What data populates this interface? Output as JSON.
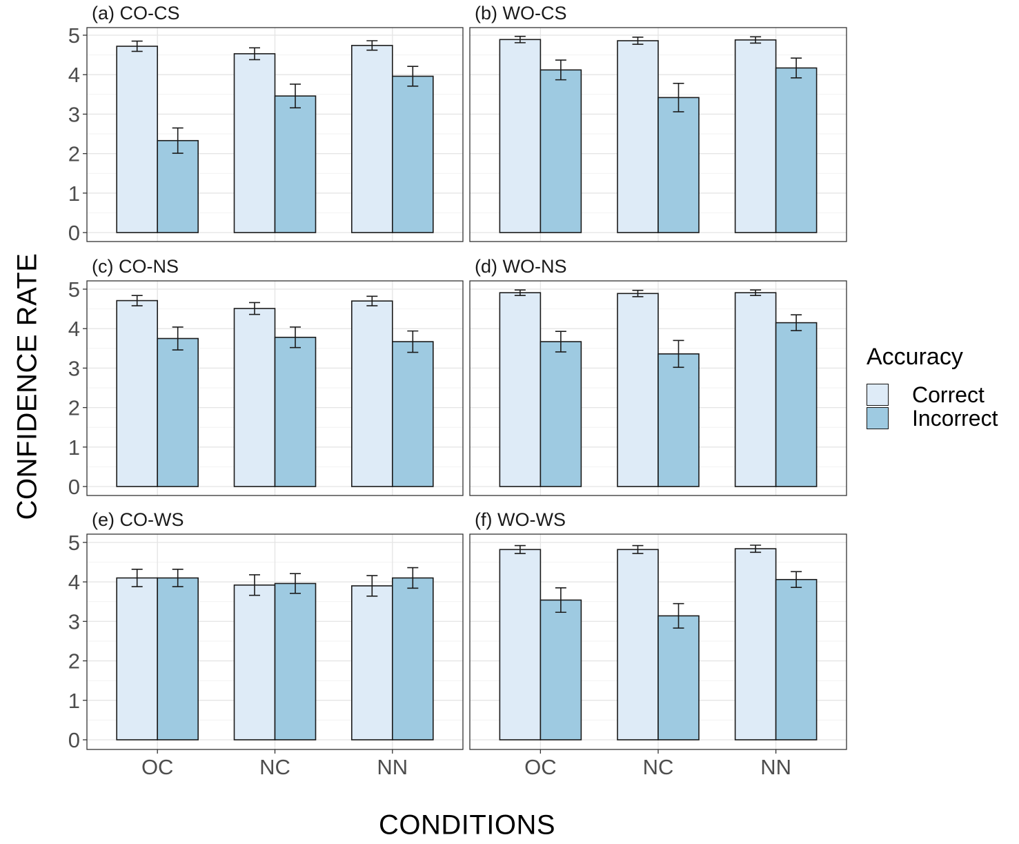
{
  "figure": {
    "ylabel": "CONFIDENCE RATE",
    "xlabel": "CONDITIONS"
  },
  "legend": {
    "title": "Accuracy",
    "items": [
      {
        "label": "Correct",
        "color": "#deebf7"
      },
      {
        "label": "Incorrect",
        "color": "#9ecae1"
      }
    ]
  },
  "chart_data": [
    {
      "type": "bar",
      "title": "(a) CO-CS",
      "categories": [
        "OC",
        "NC",
        "NN"
      ],
      "yticks": [
        0,
        1,
        2,
        3,
        4,
        5
      ],
      "ylim": [
        0,
        5
      ],
      "series": [
        {
          "name": "Correct",
          "values": [
            4.72,
            4.53,
            4.74
          ],
          "errors": [
            0.13,
            0.15,
            0.12
          ]
        },
        {
          "name": "Incorrect",
          "values": [
            2.33,
            3.46,
            3.96
          ],
          "errors": [
            0.32,
            0.3,
            0.25
          ]
        }
      ]
    },
    {
      "type": "bar",
      "title": "(b) WO-CS",
      "categories": [
        "OC",
        "NC",
        "NN"
      ],
      "yticks": [
        0,
        1,
        2,
        3,
        4,
        5
      ],
      "ylim": [
        0,
        5
      ],
      "series": [
        {
          "name": "Correct",
          "values": [
            4.89,
            4.86,
            4.88
          ],
          "errors": [
            0.08,
            0.09,
            0.08
          ]
        },
        {
          "name": "Incorrect",
          "values": [
            4.12,
            3.42,
            4.17
          ],
          "errors": [
            0.25,
            0.36,
            0.25
          ]
        }
      ]
    },
    {
      "type": "bar",
      "title": "(c) CO-NS",
      "categories": [
        "OC",
        "NC",
        "NN"
      ],
      "yticks": [
        0,
        1,
        2,
        3,
        4,
        5
      ],
      "ylim": [
        0,
        5
      ],
      "series": [
        {
          "name": "Correct",
          "values": [
            4.71,
            4.51,
            4.7
          ],
          "errors": [
            0.13,
            0.15,
            0.12
          ]
        },
        {
          "name": "Incorrect",
          "values": [
            3.75,
            3.78,
            3.67
          ],
          "errors": [
            0.29,
            0.26,
            0.27
          ]
        }
      ]
    },
    {
      "type": "bar",
      "title": "(d) WO-NS",
      "categories": [
        "OC",
        "NC",
        "NN"
      ],
      "yticks": [
        0,
        1,
        2,
        3,
        4,
        5
      ],
      "ylim": [
        0,
        5
      ],
      "series": [
        {
          "name": "Correct",
          "values": [
            4.91,
            4.89,
            4.91
          ],
          "errors": [
            0.07,
            0.08,
            0.07
          ]
        },
        {
          "name": "Incorrect",
          "values": [
            3.67,
            3.36,
            4.15
          ],
          "errors": [
            0.26,
            0.34,
            0.2
          ]
        }
      ]
    },
    {
      "type": "bar",
      "title": "(e) CO-WS",
      "categories": [
        "OC",
        "NC",
        "NN"
      ],
      "yticks": [
        0,
        1,
        2,
        3,
        4,
        5
      ],
      "ylim": [
        0,
        5
      ],
      "series": [
        {
          "name": "Correct",
          "values": [
            4.1,
            3.92,
            3.9
          ],
          "errors": [
            0.22,
            0.26,
            0.26
          ]
        },
        {
          "name": "Incorrect",
          "values": [
            4.1,
            3.96,
            4.1
          ],
          "errors": [
            0.22,
            0.25,
            0.26
          ]
        }
      ]
    },
    {
      "type": "bar",
      "title": "(f) WO-WS",
      "categories": [
        "OC",
        "NC",
        "NN"
      ],
      "yticks": [
        0,
        1,
        2,
        3,
        4,
        5
      ],
      "ylim": [
        0,
        5
      ],
      "series": [
        {
          "name": "Correct",
          "values": [
            4.82,
            4.82,
            4.84
          ],
          "errors": [
            0.1,
            0.1,
            0.09
          ]
        },
        {
          "name": "Incorrect",
          "values": [
            3.54,
            3.14,
            4.06
          ],
          "errors": [
            0.31,
            0.31,
            0.2
          ]
        }
      ]
    }
  ]
}
